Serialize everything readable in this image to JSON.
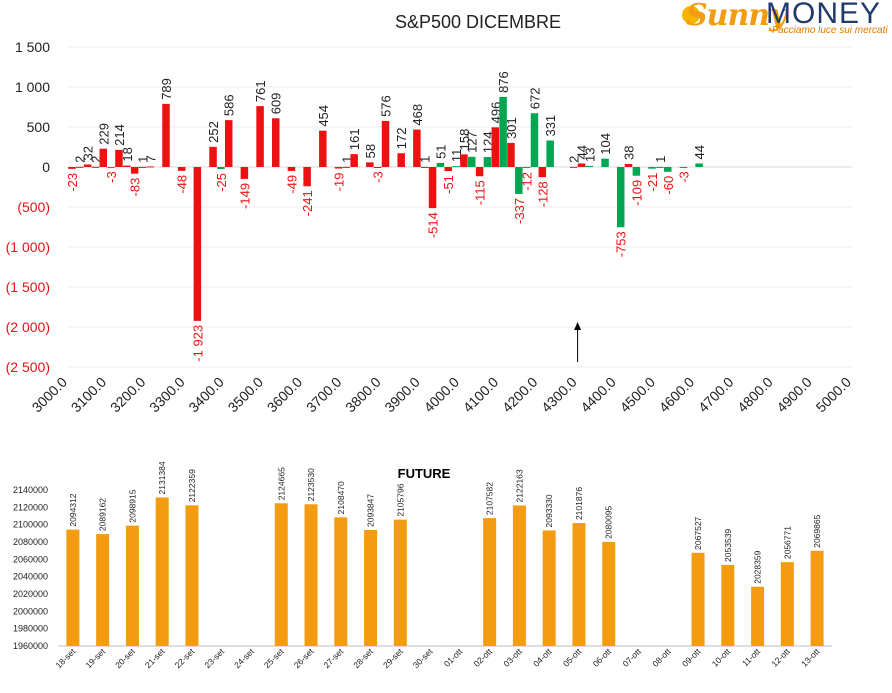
{
  "logo": {
    "word1": "Sunny",
    "word2": "MONEY",
    "tagline": "Facciamo luce sui mercati"
  },
  "chart_data": [
    {
      "type": "bar",
      "title": "S&P500 DICEMBRE",
      "ylim": [
        -2500,
        1500
      ],
      "y_ticks": [
        1500,
        1000,
        500,
        0,
        -500,
        -1000,
        -1500,
        -2000,
        -2500
      ],
      "y_tick_labels": [
        "1 500",
        "1 000",
        "500",
        "0",
        "(500)",
        "(1 000)",
        "(1 500)",
        "(2 000)",
        "(2 500)"
      ],
      "x_range": [
        3000,
        5000
      ],
      "x_ticks": [
        3000,
        3100,
        3200,
        3300,
        3400,
        3500,
        3600,
        3700,
        3800,
        3900,
        4000,
        4100,
        4200,
        4300,
        4400,
        4500,
        4600,
        4700,
        4800,
        4900,
        5000
      ],
      "x_tick_labels": [
        "3000.0",
        "3100.0",
        "3200.0",
        "3300.0",
        "3400.0",
        "3500.0",
        "3600.0",
        "3700.0",
        "3800.0",
        "3900.0",
        "4000.0",
        "4100.0",
        "4200.0",
        "4300.0",
        "4400.0",
        "4500.0",
        "4600.0",
        "4700.0",
        "4800.0",
        "4900.0",
        "5000.0"
      ],
      "grid": true,
      "marker_arrow_x": 4300,
      "colors": {
        "red": "#ee1111",
        "green": "#00a651",
        "neg_label": "#ee1111",
        "pos_label": "#222222"
      },
      "bars": [
        {
          "x": 3010,
          "value": -23,
          "color": "red"
        },
        {
          "x": 3030,
          "value": 2,
          "color": "red"
        },
        {
          "x": 3050,
          "value": 32,
          "color": "red"
        },
        {
          "x": 3070,
          "value": 2,
          "color": "red"
        },
        {
          "x": 3090,
          "value": 229,
          "color": "red"
        },
        {
          "x": 3110,
          "value": -3,
          "color": "green"
        },
        {
          "x": 3130,
          "value": 214,
          "color": "red"
        },
        {
          "x": 3150,
          "value": 18,
          "color": "red"
        },
        {
          "x": 3170,
          "value": -83,
          "color": "red"
        },
        {
          "x": 3190,
          "value": 1,
          "color": "red"
        },
        {
          "x": 3210,
          "value": 7,
          "color": "red"
        },
        {
          "x": 3250,
          "value": 789,
          "color": "red"
        },
        {
          "x": 3290,
          "value": -48,
          "color": "red"
        },
        {
          "x": 3330,
          "value": -1923,
          "color": "red"
        },
        {
          "x": 3370,
          "value": 252,
          "color": "red"
        },
        {
          "x": 3390,
          "value": -25,
          "color": "green"
        },
        {
          "x": 3410,
          "value": 586,
          "color": "red"
        },
        {
          "x": 3450,
          "value": -149,
          "color": "red"
        },
        {
          "x": 3490,
          "value": 761,
          "color": "red"
        },
        {
          "x": 3530,
          "value": 609,
          "color": "red"
        },
        {
          "x": 3570,
          "value": -49,
          "color": "red"
        },
        {
          "x": 3610,
          "value": -241,
          "color": "red"
        },
        {
          "x": 3650,
          "value": 454,
          "color": "red"
        },
        {
          "x": 3690,
          "value": -19,
          "color": "red"
        },
        {
          "x": 3710,
          "value": 1,
          "color": "red"
        },
        {
          "x": 3730,
          "value": 161,
          "color": "red"
        },
        {
          "x": 3770,
          "value": 58,
          "color": "red"
        },
        {
          "x": 3790,
          "value": -3,
          "color": "red"
        },
        {
          "x": 3810,
          "value": 576,
          "color": "red"
        },
        {
          "x": 3850,
          "value": 172,
          "color": "red"
        },
        {
          "x": 3890,
          "value": 468,
          "color": "red"
        },
        {
          "x": 3910,
          "value": 1,
          "color": "red"
        },
        {
          "x": 3930,
          "value": -514,
          "color": "red"
        },
        {
          "x": 3950,
          "value": 51,
          "color": "green"
        },
        {
          "x": 3970,
          "value": -51,
          "color": "red"
        },
        {
          "x": 3990,
          "value": 11,
          "color": "green"
        },
        {
          "x": 4010,
          "value": 158,
          "color": "red"
        },
        {
          "x": 4030,
          "value": 127,
          "color": "green"
        },
        {
          "x": 4050,
          "value": -115,
          "color": "red"
        },
        {
          "x": 4070,
          "value": 124,
          "color": "green"
        },
        {
          "x": 4090,
          "value": 496,
          "color": "red"
        },
        {
          "x": 4110,
          "value": 876,
          "color": "green"
        },
        {
          "x": 4130,
          "value": 301,
          "color": "red"
        },
        {
          "x": 4150,
          "value": -337,
          "color": "green"
        },
        {
          "x": 4170,
          "value": -12,
          "color": "green"
        },
        {
          "x": 4190,
          "value": 672,
          "color": "green"
        },
        {
          "x": 4210,
          "value": -128,
          "color": "red"
        },
        {
          "x": 4230,
          "value": 331,
          "color": "green"
        },
        {
          "x": 4290,
          "value": 2,
          "color": "red"
        },
        {
          "x": 4310,
          "value": 44,
          "color": "red"
        },
        {
          "x": 4330,
          "value": 13,
          "color": "green"
        },
        {
          "x": 4370,
          "value": 104,
          "color": "green"
        },
        {
          "x": 4410,
          "value": -753,
          "color": "green"
        },
        {
          "x": 4430,
          "value": 38,
          "color": "red"
        },
        {
          "x": 4450,
          "value": -109,
          "color": "green"
        },
        {
          "x": 4490,
          "value": -21,
          "color": "green"
        },
        {
          "x": 4510,
          "value": 1,
          "color": "green"
        },
        {
          "x": 4530,
          "value": -60,
          "color": "green"
        },
        {
          "x": 4570,
          "value": -3,
          "color": "green"
        },
        {
          "x": 4610,
          "value": 44,
          "color": "green"
        }
      ]
    },
    {
      "type": "bar",
      "title": "FUTURE",
      "ylim": [
        1960000,
        2140000
      ],
      "y_ticks": [
        1960000,
        1980000,
        2000000,
        2020000,
        2040000,
        2060000,
        2080000,
        2100000,
        2120000,
        2140000
      ],
      "y_tick_labels": [
        "1960000",
        "1980000",
        "2000000",
        "2020000",
        "2040000",
        "2060000",
        "2080000",
        "2100000",
        "2120000",
        "2140000"
      ],
      "grid": false,
      "bar_color": "#f39c12",
      "categories": [
        "18-set",
        "19-set",
        "20-set",
        "21-set",
        "22-set",
        "23-set",
        "24-set",
        "25-set",
        "26-set",
        "27-set",
        "28-set",
        "29-set",
        "30-set",
        "01-ott",
        "02-ott",
        "03-ott",
        "04-ott",
        "05-ott",
        "06-ott",
        "07-ott",
        "08-ott",
        "09-ott",
        "10-ott",
        "11-ott",
        "12-ott",
        "13-ott"
      ],
      "values": [
        2094312,
        2089162,
        2098915,
        2131384,
        2122359,
        null,
        null,
        2124665,
        2123530,
        2108470,
        2093847,
        2105796,
        null,
        null,
        2107582,
        2122163,
        2093330,
        2101876,
        2080095,
        null,
        null,
        2067527,
        2053539,
        2028359,
        2056771,
        2069865
      ]
    }
  ]
}
